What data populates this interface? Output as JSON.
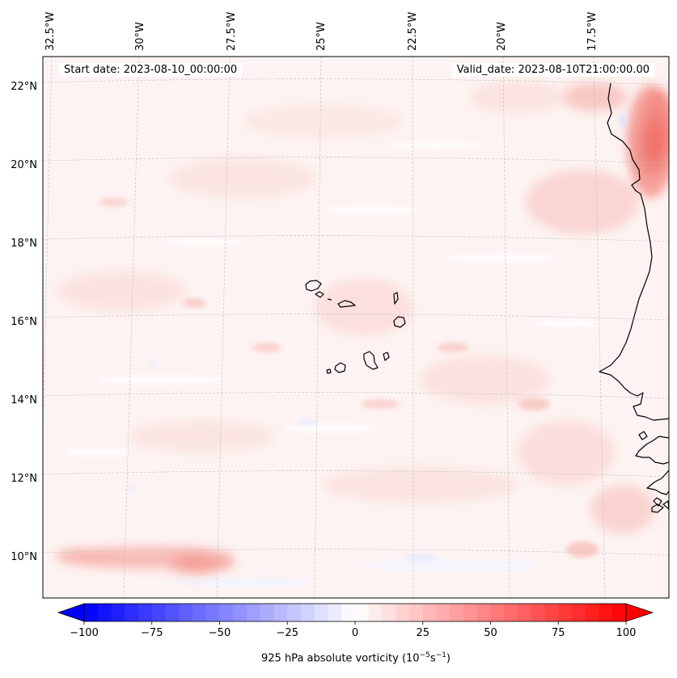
{
  "title_left": "Start date: 2023-08-10_00:00:00",
  "title_right": "Valid_date: 2023-08-10T21:00:00.00",
  "longitude_labels": [
    "32.5°W",
    "30°W",
    "27.5°W",
    "25°W",
    "22.5°W",
    "20°W",
    "17.5°W"
  ],
  "latitude_labels": [
    "22°N",
    "20°N",
    "18°N",
    "16°N",
    "14°N",
    "12°N",
    "10°N"
  ],
  "colorbar": {
    "label_prefix": "925 hPa absolute vorticity (10",
    "label_exp1": "−5",
    "label_mid": "s",
    "label_exp2": "−1",
    "label_suffix": ")",
    "ticks": [
      "−100",
      "−75",
      "−50",
      "−25",
      "0",
      "25",
      "50",
      "75",
      "100"
    ],
    "min": -100,
    "max": 100,
    "levels": 40,
    "colormap": "bwr",
    "extend": "both"
  },
  "colors": {
    "low": "#0000ff",
    "mid": "#ffffff",
    "high": "#ff0000",
    "coastline": "#000000",
    "gridline": "#bfbfbf"
  }
}
